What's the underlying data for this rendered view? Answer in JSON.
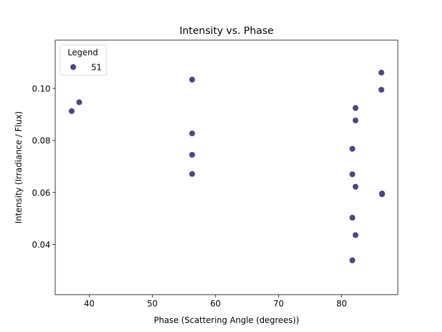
{
  "chart_data": {
    "type": "scatter",
    "title": "Intensity vs. Phase",
    "xlabel": "Phase (Scattering Angle (degrees))",
    "ylabel": "Intensity (Irradiance / Flux)",
    "xlim": [
      34.6,
      88.9
    ],
    "ylim": [
      0.0207,
      0.1186
    ],
    "xticks": [
      40,
      50,
      60,
      70,
      80
    ],
    "xtick_labels": [
      "40",
      "50",
      "60",
      "70",
      "80"
    ],
    "yticks": [
      0.04,
      0.06,
      0.08,
      0.1
    ],
    "ytick_labels": [
      "0.04",
      "0.06",
      "0.08",
      "0.10"
    ],
    "grid": false,
    "legend": {
      "title": "Legend",
      "position": "upper-left"
    },
    "series": [
      {
        "name": "51",
        "color": "#4f4589",
        "points": [
          {
            "x": 37.2,
            "y": 0.0913
          },
          {
            "x": 38.4,
            "y": 0.0947
          },
          {
            "x": 56.3,
            "y": 0.1034
          },
          {
            "x": 56.3,
            "y": 0.0827
          },
          {
            "x": 56.3,
            "y": 0.0745
          },
          {
            "x": 56.3,
            "y": 0.0671
          },
          {
            "x": 81.7,
            "y": 0.0768
          },
          {
            "x": 81.7,
            "y": 0.067
          },
          {
            "x": 81.7,
            "y": 0.0503
          },
          {
            "x": 81.7,
            "y": 0.0339
          },
          {
            "x": 82.2,
            "y": 0.0925
          },
          {
            "x": 82.2,
            "y": 0.0877
          },
          {
            "x": 82.2,
            "y": 0.0622
          },
          {
            "x": 82.2,
            "y": 0.0436
          },
          {
            "x": 86.3,
            "y": 0.1061
          },
          {
            "x": 86.3,
            "y": 0.0995
          },
          {
            "x": 86.4,
            "y": 0.0596
          },
          {
            "x": 86.4,
            "y": 0.0593
          }
        ]
      }
    ]
  }
}
